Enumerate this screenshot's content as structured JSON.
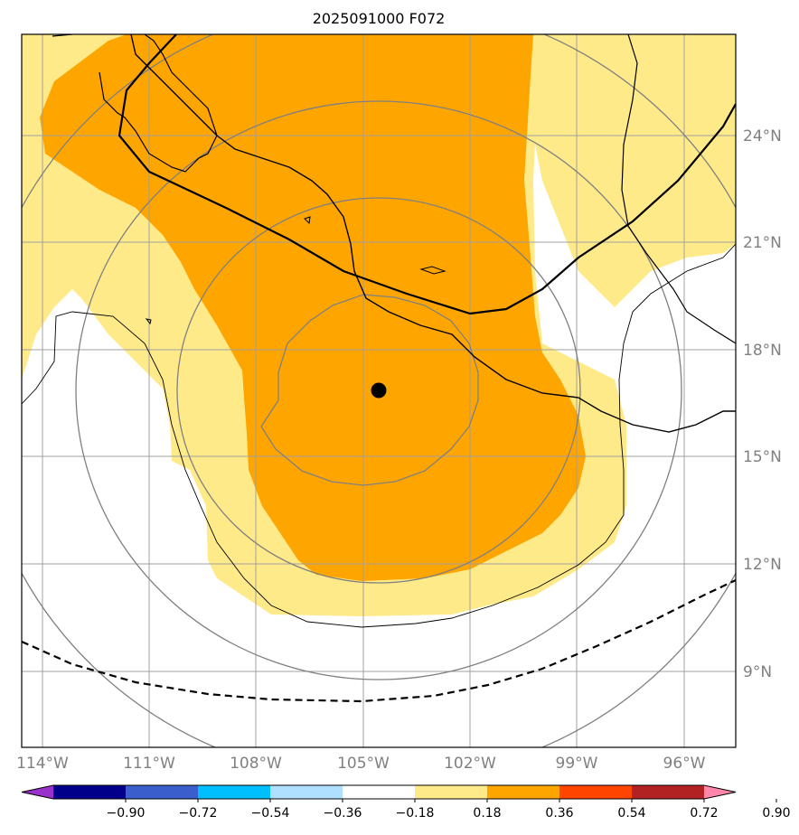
{
  "map": {
    "title": "2025091000 F072",
    "center_marker": {
      "lon": -104.6,
      "lat": 16.8
    },
    "lon_extent": [
      -115,
      -94
    ],
    "lat_extent": [
      7,
      27
    ],
    "lat_gridlines": [
      9,
      12,
      15,
      18,
      21,
      24
    ],
    "lon_gridlines": [
      -114,
      -111,
      -108,
      -105,
      -102,
      -99,
      -96
    ],
    "lat_labels": [
      "9°N",
      "12°N",
      "15°N",
      "18°N",
      "21°N",
      "24°N"
    ],
    "lon_labels": [
      "114°W",
      "111°W",
      "108°W",
      "105°W",
      "102°W",
      "99°W",
      "96°W"
    ],
    "range_rings": "concentric",
    "colors": {
      "light_yellow": "#ffea8a",
      "orange": "#ffa500",
      "grid": "#a0a0a0",
      "ring": "#808080",
      "coast": "#000000",
      "marker": "#000000"
    }
  },
  "colorbar": {
    "ticks": [
      "−0.90",
      "−0.72",
      "−0.54",
      "−0.36",
      "−0.18",
      "0.18",
      "0.36",
      "0.54",
      "0.72",
      "0.90"
    ],
    "colors": [
      "#9932cc",
      "#00008b",
      "#3a5fcd",
      "#00bfff",
      "#b0e0ff",
      "#ffffff",
      "#ffea8a",
      "#ffa500",
      "#ff4500",
      "#b22222",
      "#ff88aa"
    ],
    "extend": "both"
  }
}
